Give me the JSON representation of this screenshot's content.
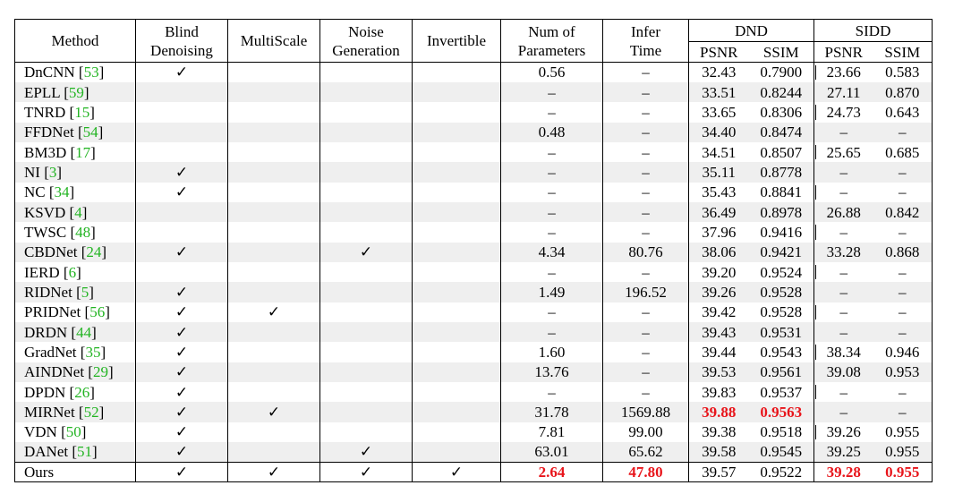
{
  "table": {
    "header": {
      "method": "Method",
      "blind": [
        "Blind",
        "Denoising"
      ],
      "multiscale": "MultiScale",
      "noise_generation": [
        "Noise",
        "Generation"
      ],
      "invertible": "Invertible",
      "num_params": [
        "Num of",
        "Parameters"
      ],
      "infer_time": [
        "Infer",
        "Time"
      ],
      "dnd": "DND",
      "sidd": "SIDD",
      "psnr": "PSNR",
      "ssim": "SSIM"
    },
    "checkmark": "✓",
    "rows": [
      {
        "name": "DnCNN",
        "ref": "53",
        "blind": "✓",
        "multiscale": "",
        "noise": "",
        "invertible": "",
        "params": "0.56",
        "time": "–",
        "dnd_psnr": "32.43",
        "dnd_ssim": "0.7900",
        "sidd_psnr": "23.66",
        "sidd_ssim": "0.583",
        "sep": true
      },
      {
        "name": "EPLL",
        "ref": "59",
        "blind": "",
        "multiscale": "",
        "noise": "",
        "invertible": "",
        "params": "–",
        "time": "–",
        "dnd_psnr": "33.51",
        "dnd_ssim": "0.8244",
        "sidd_psnr": "27.11",
        "sidd_ssim": "0.870",
        "sep": false
      },
      {
        "name": "TNRD",
        "ref": "15",
        "blind": "",
        "multiscale": "",
        "noise": "",
        "invertible": "",
        "params": "–",
        "time": "–",
        "dnd_psnr": "33.65",
        "dnd_ssim": "0.8306",
        "sidd_psnr": "24.73",
        "sidd_ssim": "0.643",
        "sep": true
      },
      {
        "name": "FFDNet",
        "ref": "54",
        "blind": "",
        "multiscale": "",
        "noise": "",
        "invertible": "",
        "params": "0.48",
        "time": "–",
        "dnd_psnr": "34.40",
        "dnd_ssim": "0.8474",
        "sidd_psnr": "–",
        "sidd_ssim": "–",
        "sep": false
      },
      {
        "name": "BM3D",
        "ref": "17",
        "blind": "",
        "multiscale": "",
        "noise": "",
        "invertible": "",
        "params": "–",
        "time": "–",
        "dnd_psnr": "34.51",
        "dnd_ssim": "0.8507",
        "sidd_psnr": "25.65",
        "sidd_ssim": "0.685",
        "sep": true
      },
      {
        "name": "NI",
        "ref": "3",
        "blind": "✓",
        "multiscale": "",
        "noise": "",
        "invertible": "",
        "params": "–",
        "time": "–",
        "dnd_psnr": "35.11",
        "dnd_ssim": "0.8778",
        "sidd_psnr": "–",
        "sidd_ssim": "–",
        "sep": false
      },
      {
        "name": "NC",
        "ref": "34",
        "blind": "✓",
        "multiscale": "",
        "noise": "",
        "invertible": "",
        "params": "–",
        "time": "–",
        "dnd_psnr": "35.43",
        "dnd_ssim": "0.8841",
        "sidd_psnr": "–",
        "sidd_ssim": "–",
        "sep": true
      },
      {
        "name": "KSVD",
        "ref": "4",
        "blind": "",
        "multiscale": "",
        "noise": "",
        "invertible": "",
        "params": "–",
        "time": "–",
        "dnd_psnr": "36.49",
        "dnd_ssim": "0.8978",
        "sidd_psnr": "26.88",
        "sidd_ssim": "0.842",
        "sep": false
      },
      {
        "name": "TWSC",
        "ref": "48",
        "blind": "",
        "multiscale": "",
        "noise": "",
        "invertible": "",
        "params": "–",
        "time": "–",
        "dnd_psnr": "37.96",
        "dnd_ssim": "0.9416",
        "sidd_psnr": "–",
        "sidd_ssim": "–",
        "sep": true
      },
      {
        "name": "CBDNet",
        "ref": "24",
        "blind": "✓",
        "multiscale": "",
        "noise": "✓",
        "invertible": "",
        "params": "4.34",
        "time": "80.76",
        "dnd_psnr": "38.06",
        "dnd_ssim": "0.9421",
        "sidd_psnr": "33.28",
        "sidd_ssim": "0.868",
        "sep": false
      },
      {
        "name": "IERD",
        "ref": "6",
        "blind": "",
        "multiscale": "",
        "noise": "",
        "invertible": "",
        "params": "–",
        "time": "–",
        "dnd_psnr": "39.20",
        "dnd_ssim": "0.9524",
        "sidd_psnr": "–",
        "sidd_ssim": "–",
        "sep": true
      },
      {
        "name": "RIDNet",
        "ref": "5",
        "blind": "✓",
        "multiscale": "",
        "noise": "",
        "invertible": "",
        "params": "1.49",
        "time": "196.52",
        "dnd_psnr": "39.26",
        "dnd_ssim": "0.9528",
        "sidd_psnr": "–",
        "sidd_ssim": "–",
        "sep": false
      },
      {
        "name": "PRIDNet",
        "ref": "56",
        "blind": "✓",
        "multiscale": "✓",
        "noise": "",
        "invertible": "",
        "params": "–",
        "time": "–",
        "dnd_psnr": "39.42",
        "dnd_ssim": "0.9528",
        "sidd_psnr": "–",
        "sidd_ssim": "–",
        "sep": true
      },
      {
        "name": "DRDN",
        "ref": "44",
        "blind": "✓",
        "multiscale": "",
        "noise": "",
        "invertible": "",
        "params": "–",
        "time": "–",
        "dnd_psnr": "39.43",
        "dnd_ssim": "0.9531",
        "sidd_psnr": "–",
        "sidd_ssim": "–",
        "sep": false
      },
      {
        "name": "GradNet",
        "ref": "35",
        "blind": "✓",
        "multiscale": "",
        "noise": "",
        "invertible": "",
        "params": "1.60",
        "time": "–",
        "dnd_psnr": "39.44",
        "dnd_ssim": "0.9543",
        "sidd_psnr": "38.34",
        "sidd_ssim": "0.946",
        "sep": true
      },
      {
        "name": "AINDNet",
        "ref": "29",
        "blind": "✓",
        "multiscale": "",
        "noise": "",
        "invertible": "",
        "params": "13.76",
        "time": "–",
        "dnd_psnr": "39.53",
        "dnd_ssim": "0.9561",
        "sidd_psnr": "39.08",
        "sidd_ssim": "0.953",
        "sep": false
      },
      {
        "name": "DPDN",
        "ref": "26",
        "blind": "✓",
        "multiscale": "",
        "noise": "",
        "invertible": "",
        "params": "–",
        "time": "–",
        "dnd_psnr": "39.83",
        "dnd_ssim": "0.9537",
        "sidd_psnr": "–",
        "sidd_ssim": "–",
        "sep": true
      },
      {
        "name": "MIRNet",
        "ref": "52",
        "blind": "✓",
        "multiscale": "✓",
        "noise": "",
        "invertible": "",
        "params": "31.78",
        "time": "1569.88",
        "dnd_psnr": "39.88",
        "dnd_ssim": "0.9563",
        "sidd_psnr": "–",
        "sidd_ssim": "–",
        "sep": false,
        "best_dnd": true
      },
      {
        "name": "VDN",
        "ref": "50",
        "blind": "✓",
        "multiscale": "",
        "noise": "",
        "invertible": "",
        "params": "7.81",
        "time": "99.00",
        "dnd_psnr": "39.38",
        "dnd_ssim": "0.9518",
        "sidd_psnr": "39.26",
        "sidd_ssim": "0.955",
        "sep": true
      },
      {
        "name": "DANet",
        "ref": "51",
        "blind": "✓",
        "multiscale": "",
        "noise": "✓",
        "invertible": "",
        "params": "63.01",
        "time": "65.62",
        "dnd_psnr": "39.58",
        "dnd_ssim": "0.9545",
        "sidd_psnr": "39.25",
        "sidd_ssim": "0.955",
        "sep": false
      }
    ],
    "ours": {
      "name": "Ours",
      "blind": "✓",
      "multiscale": "✓",
      "noise": "✓",
      "invertible": "✓",
      "params": "2.64",
      "time": "47.80",
      "dnd_psnr": "39.57",
      "dnd_ssim": "0.9522",
      "sidd_psnr": "39.28",
      "sidd_ssim": "0.955"
    },
    "colors": {
      "highlight": "#e8151b",
      "reference": "#22b422",
      "stripe": "#efefef"
    }
  }
}
